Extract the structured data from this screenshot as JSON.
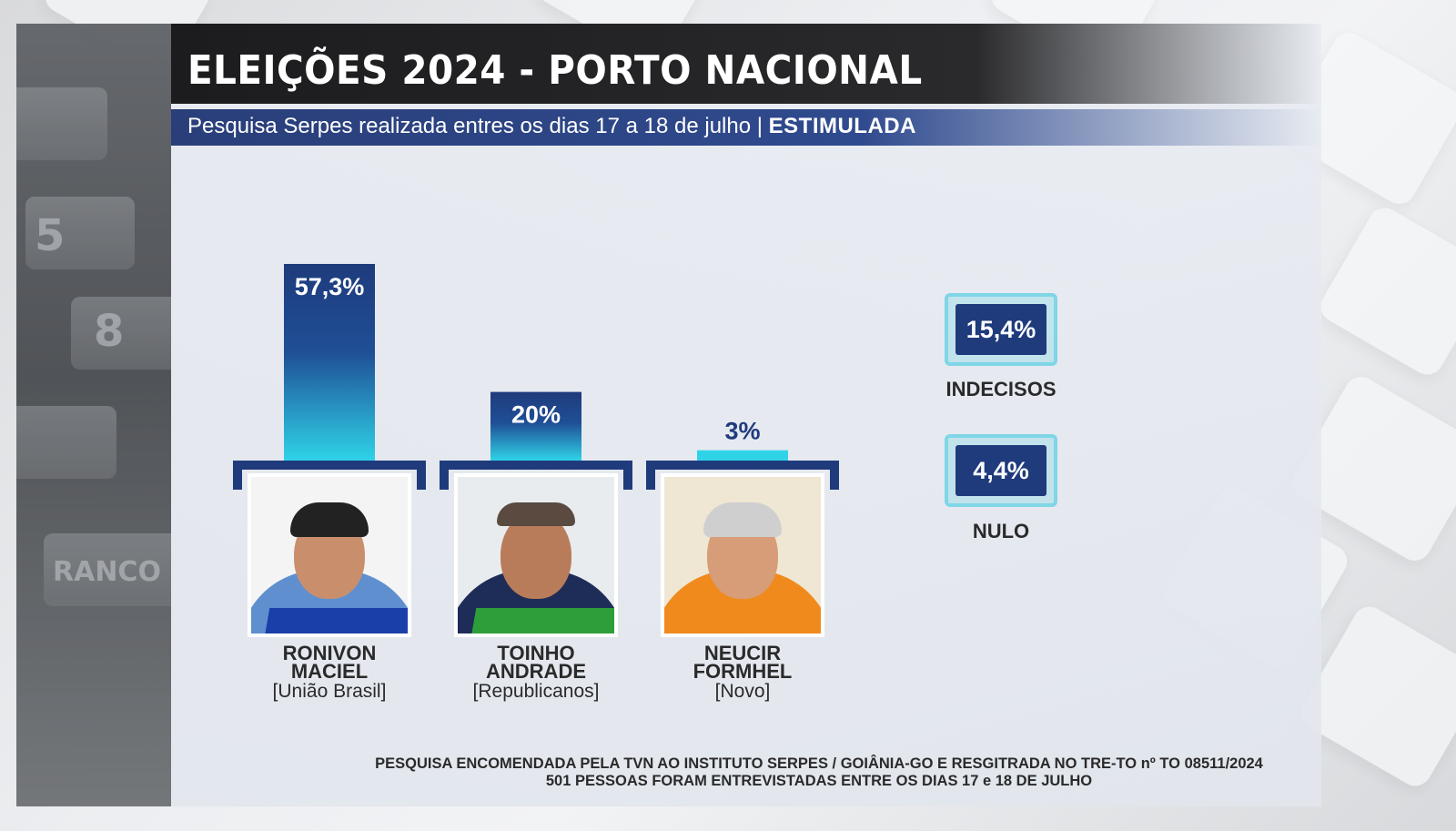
{
  "header": {
    "title": "ELEIÇÕES 2024 - PORTO NACIONAL",
    "subtitle_main": "Pesquisa Serpes realizada entres os dias 17 a 18 de julho |",
    "subtitle_bold": "ESTIMULADA"
  },
  "chart_data": {
    "type": "bar",
    "categories": [
      "RONIVON MACIEL",
      "TOINHO ANDRADE",
      "NEUCIR FORMHEL"
    ],
    "values": [
      57.3,
      20,
      3
    ],
    "value_labels": [
      "57,3%",
      "20%",
      "3%"
    ],
    "parties": [
      "[União Brasil]",
      "[Republicanos]",
      "[Novo]"
    ],
    "name_lines": [
      [
        "RONIVON",
        "MACIEL"
      ],
      [
        "TOINHO",
        "ANDRADE"
      ],
      [
        "NEUCIR",
        "FORMHEL"
      ]
    ],
    "candidate_colors": [
      "#1a3fa8",
      "#2e9e3a",
      "#f08a1c"
    ],
    "bar_color_top": "#1f3b7c",
    "bar_color_bottom": "#2fd3e8",
    "other": [
      {
        "label": "INDECISOS",
        "value": 15.4,
        "value_label": "15,4%"
      },
      {
        "label": "NULO",
        "value": 4.4,
        "value_label": "4,4%"
      }
    ]
  },
  "footer": {
    "line1": "PESQUISA ENCOMENDADA PELA TVN AO INSTITUTO SERPES / GOIÂNIA-GO E  RESGITRADA NO TRE-TO nº TO 08511/2024",
    "line2": "501 PESSOAS FORAM ENTREVISTADAS ENTRE OS DIAS 17 e 18 DE JULHO"
  }
}
